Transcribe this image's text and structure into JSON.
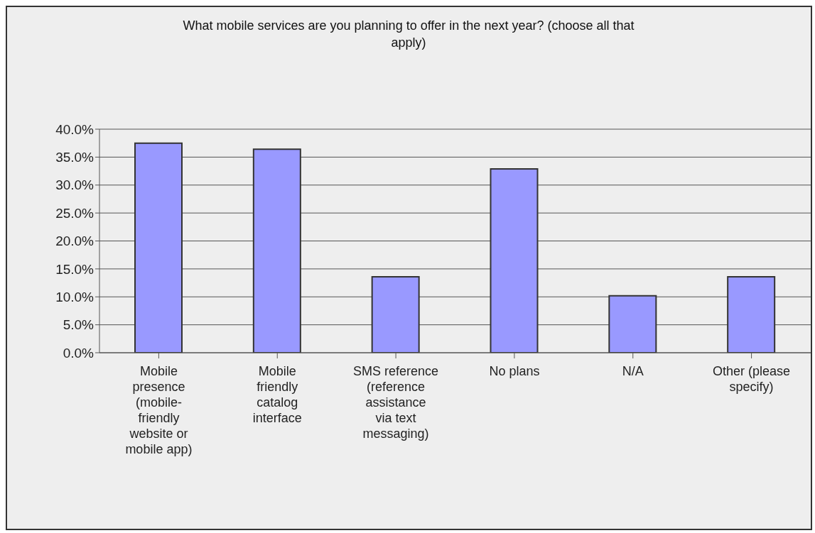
{
  "chart_data": {
    "type": "bar",
    "title": "What mobile services are you planning to offer in the next year? (choose all that apply)",
    "categories": [
      "Mobile presence (mobile-friendly website or mobile app)",
      "Mobile friendly catalog interface",
      "SMS reference (reference assistance via text messaging)",
      "No plans",
      "N/A",
      "Other (please specify)"
    ],
    "values": [
      37.5,
      36.4,
      13.6,
      32.9,
      10.2,
      13.6
    ],
    "color": "#9999ff",
    "ylim": [
      0,
      40
    ],
    "yticks": [
      {
        "value": 0,
        "label": "0.0%"
      },
      {
        "value": 5,
        "label": "5.0%"
      },
      {
        "value": 10,
        "label": "10.0%"
      },
      {
        "value": 15,
        "label": "15.0%"
      },
      {
        "value": 20,
        "label": "20.0%"
      },
      {
        "value": 25,
        "label": "25.0%"
      },
      {
        "value": 30,
        "label": "30.0%"
      },
      {
        "value": 35,
        "label": "35.0%"
      },
      {
        "value": 40,
        "label": "40.0%"
      }
    ],
    "grid": "y"
  }
}
